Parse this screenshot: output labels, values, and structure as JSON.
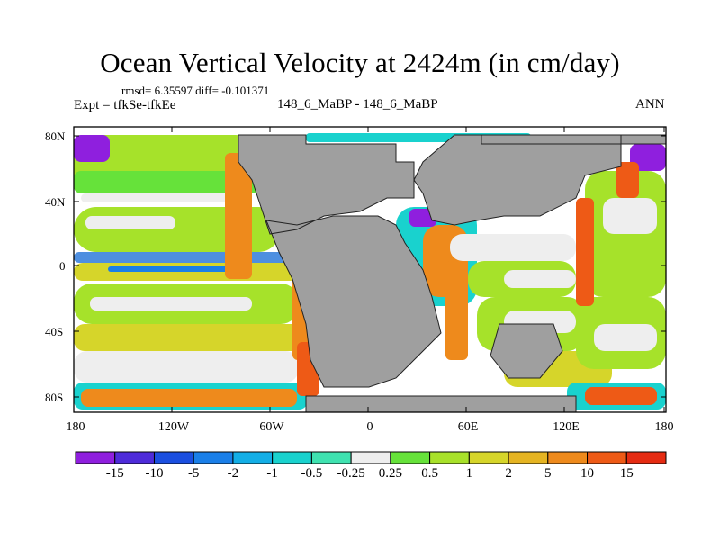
{
  "title": "Ocean Vertical Velocity at 2424m (in cm/day)",
  "stats_line": "rmsd= 6.35597 diff= -0.101371",
  "expt_line": "Expt = tfkSe-tfkEe",
  "case_line": "148_6_MaBP - 148_6_MaBP",
  "season": "ANN",
  "lat_labels": [
    "80N",
    "40N",
    "0",
    "40S",
    "80S"
  ],
  "lon_labels": [
    "180",
    "120W",
    "60W",
    "0",
    "60E",
    "120E",
    "180"
  ],
  "colorbar": {
    "colors": [
      "#8f1fde",
      "#4e2bd9",
      "#1b4fe0",
      "#1a7fe8",
      "#13aee6",
      "#19d2ce",
      "#3fe2b0",
      "#eeeeee",
      "#66e23a",
      "#a8e12a",
      "#d6d52a",
      "#e5b422",
      "#ee8a1c",
      "#ee5a16",
      "#e52b12"
    ],
    "labels": [
      "-15",
      "-10",
      "-5",
      "-2",
      "-1",
      "-0.5",
      "-0.25",
      "0.25",
      "0.5",
      "1",
      "2",
      "5",
      "10",
      "15"
    ]
  },
  "land_color": "#9f9f9f"
}
